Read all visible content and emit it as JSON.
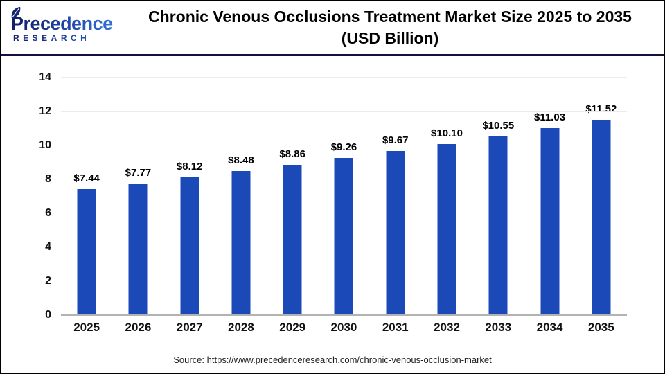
{
  "header": {
    "logo_brand": "Precedence",
    "logo_sub": "RESEARCH",
    "title_line1": "Chronic Venous Occlusions Treatment Market Size 2025 to 2035",
    "title_line2": "(USD Billion)"
  },
  "chart_data": {
    "type": "bar",
    "title": "Chronic Venous Occlusions Treatment Market Size 2025 to 2035 (USD Billion)",
    "categories": [
      "2025",
      "2026",
      "2027",
      "2028",
      "2029",
      "2030",
      "2031",
      "2032",
      "2033",
      "2034",
      "2035"
    ],
    "values": [
      7.44,
      7.77,
      8.12,
      8.48,
      8.86,
      9.26,
      9.67,
      10.1,
      10.55,
      11.03,
      11.52
    ],
    "value_prefix": "$",
    "xlabel": "",
    "ylabel": "",
    "ylim": [
      0,
      14
    ],
    "yticks": [
      0,
      2,
      4,
      6,
      8,
      10,
      12,
      14
    ],
    "grid": true,
    "legend": "none",
    "bar_color": "#1b49b8"
  },
  "footer": {
    "source": "Source: https://www.precedenceresearch.com/chronic-venous-occlusion-market"
  },
  "colors": {
    "bar": "#1b49b8",
    "separator": "#12123d",
    "gridline": "#ececec",
    "baseline": "#b3b3b3",
    "logo_dark": "#121e63",
    "logo_light": "#3273d8"
  }
}
